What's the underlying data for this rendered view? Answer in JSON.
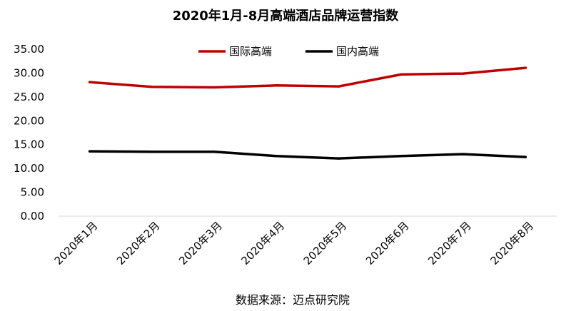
{
  "chart_data": {
    "type": "line",
    "title": "2020年1月-8月高端酒店品牌运营指数",
    "categories": [
      "2020年1月",
      "2020年2月",
      "2020年3月",
      "2020年4月",
      "2020年5月",
      "2020年6月",
      "2020年7月",
      "2020年8月"
    ],
    "series": [
      {
        "name": "国际高端",
        "color": "#c00000",
        "values": [
          28.1,
          27.1,
          27.0,
          27.4,
          27.2,
          29.7,
          29.9,
          31.1
        ]
      },
      {
        "name": "国内高端",
        "color": "#000000",
        "values": [
          13.6,
          13.5,
          13.5,
          12.6,
          12.1,
          12.6,
          13.0,
          12.4
        ]
      }
    ],
    "ylim": [
      0,
      35
    ],
    "yticks": [
      "0.00",
      "5.00",
      "10.00",
      "15.00",
      "20.00",
      "25.00",
      "30.00",
      "35.00"
    ],
    "grid": false,
    "legend": "top-center",
    "source": "数据来源：迈点研究院"
  }
}
